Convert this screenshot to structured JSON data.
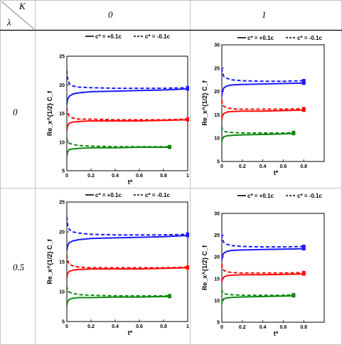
{
  "table": {
    "corner_top": "K",
    "corner_bottom": "λ",
    "col_headers": [
      "0",
      "1"
    ],
    "row_headers": [
      "0",
      "0.5"
    ]
  },
  "colors": {
    "blue": "#1a1aff",
    "red": "#ff0d0d",
    "green": "#0f8a0f"
  },
  "chart_data": [
    {
      "type": "line",
      "panel": "K=0, λ=0",
      "xlabel": "t*",
      "ylabel": "Re_x^{1/2} C_f",
      "xlim": [
        0,
        1
      ],
      "ylim": [
        5,
        25
      ],
      "xticks": [
        "0",
        "0.2",
        "0.4",
        "0.6",
        "0.8",
        "1"
      ],
      "yticks": [
        "5",
        "10",
        "15",
        "20",
        "25"
      ],
      "legend": {
        "placement": "top",
        "solid": "c* = +0.1c",
        "dashed": "c* = -0.1c"
      },
      "curves": [
        {
          "color": "blue",
          "style": "solid",
          "x": [
            0,
            0.005,
            0.02,
            0.05,
            0.1,
            0.2,
            0.4,
            0.6,
            0.8,
            1.0
          ],
          "y": [
            16.5,
            17.4,
            18.0,
            18.4,
            18.6,
            18.8,
            18.9,
            19.0,
            19.1,
            19.3
          ]
        },
        {
          "color": "blue",
          "style": "dashed",
          "x": [
            0,
            0.005,
            0.02,
            0.05,
            0.1,
            0.2,
            0.4,
            0.6,
            0.8,
            1.0
          ],
          "y": [
            22.5,
            21.2,
            20.2,
            19.8,
            19.6,
            19.5,
            19.4,
            19.4,
            19.4,
            19.5
          ]
        },
        {
          "color": "red",
          "style": "solid",
          "x": [
            0,
            0.005,
            0.02,
            0.05,
            0.1,
            0.2,
            0.4,
            0.6,
            0.8,
            1.0
          ],
          "y": [
            12.0,
            12.8,
            13.3,
            13.5,
            13.6,
            13.7,
            13.7,
            13.7,
            13.8,
            13.9
          ]
        },
        {
          "color": "red",
          "style": "dashed",
          "x": [
            0,
            0.005,
            0.02,
            0.05,
            0.1,
            0.2,
            0.4,
            0.6,
            0.8,
            1.0
          ],
          "y": [
            16.0,
            15.2,
            14.5,
            14.2,
            14.0,
            14.0,
            13.9,
            13.9,
            13.9,
            14.0
          ]
        },
        {
          "color": "green",
          "style": "solid",
          "x": [
            0,
            0.005,
            0.02,
            0.05,
            0.1,
            0.2,
            0.4,
            0.6,
            0.85
          ],
          "y": [
            7.5,
            8.2,
            8.7,
            8.8,
            8.9,
            9.0,
            9.0,
            9.1,
            9.1
          ]
        },
        {
          "color": "green",
          "style": "dashed",
          "x": [
            0,
            0.005,
            0.02,
            0.05,
            0.1,
            0.2,
            0.4,
            0.6,
            0.85
          ],
          "y": [
            10.8,
            10.2,
            9.8,
            9.6,
            9.4,
            9.3,
            9.2,
            9.2,
            9.2
          ]
        }
      ]
    },
    {
      "type": "line",
      "panel": "K=1, λ=0",
      "xlabel": "t*",
      "ylabel": "Re_x^{1/2} C_f",
      "xlim": [
        0,
        1
      ],
      "ylim": [
        5,
        30
      ],
      "xticks": [
        "0",
        "0.2",
        "0.4",
        "0.6",
        "0.8"
      ],
      "yticks": [
        "5",
        "10",
        "15",
        "20",
        "25",
        "30"
      ],
      "legend": {
        "placement": "top",
        "solid": "c* = +0.1c",
        "dashed": "c* = -0.1c"
      },
      "curves": [
        {
          "color": "blue",
          "style": "solid",
          "x": [
            0,
            0.005,
            0.02,
            0.05,
            0.1,
            0.2,
            0.4,
            0.6,
            0.8
          ],
          "y": [
            19.0,
            20.0,
            20.8,
            21.2,
            21.4,
            21.5,
            21.6,
            21.7,
            21.8
          ]
        },
        {
          "color": "blue",
          "style": "dashed",
          "x": [
            0,
            0.005,
            0.02,
            0.05,
            0.1,
            0.2,
            0.4,
            0.6,
            0.8
          ],
          "y": [
            25.0,
            24.0,
            23.2,
            22.8,
            22.5,
            22.3,
            22.2,
            22.2,
            22.3
          ]
        },
        {
          "color": "red",
          "style": "solid",
          "x": [
            0,
            0.005,
            0.02,
            0.05,
            0.1,
            0.2,
            0.4,
            0.6,
            0.8
          ],
          "y": [
            14.0,
            14.8,
            15.3,
            15.6,
            15.7,
            15.8,
            15.8,
            15.9,
            16.0
          ]
        },
        {
          "color": "red",
          "style": "dashed",
          "x": [
            0,
            0.005,
            0.02,
            0.05,
            0.1,
            0.2,
            0.4,
            0.6,
            0.8
          ],
          "y": [
            18.2,
            17.4,
            16.8,
            16.5,
            16.3,
            16.2,
            16.2,
            16.2,
            16.3
          ]
        },
        {
          "color": "green",
          "style": "solid",
          "x": [
            0,
            0.005,
            0.02,
            0.05,
            0.1,
            0.2,
            0.4,
            0.6,
            0.7
          ],
          "y": [
            9.2,
            9.9,
            10.3,
            10.5,
            10.6,
            10.7,
            10.8,
            10.9,
            11.0
          ]
        },
        {
          "color": "green",
          "style": "dashed",
          "x": [
            0,
            0.005,
            0.02,
            0.05,
            0.1,
            0.2,
            0.4,
            0.6,
            0.7
          ],
          "y": [
            12.5,
            11.9,
            11.5,
            11.3,
            11.2,
            11.1,
            11.1,
            11.1,
            11.2
          ]
        }
      ]
    },
    {
      "type": "line",
      "panel": "K=0, λ=0.5",
      "xlabel": "t*",
      "ylabel": "Re_x^{1/2} C_f",
      "xlim": [
        0,
        1
      ],
      "ylim": [
        5,
        25
      ],
      "xticks": [
        "0",
        "0.2",
        "0.4",
        "0.6",
        "0.8",
        "1"
      ],
      "yticks": [
        "5",
        "10",
        "15",
        "20",
        "25"
      ],
      "legend": {
        "placement": "top",
        "solid": "c* = +0.1c",
        "dashed": "c* = -0.1c"
      },
      "curves": [
        {
          "color": "blue",
          "style": "solid",
          "x": [
            0,
            0.005,
            0.02,
            0.05,
            0.1,
            0.2,
            0.4,
            0.6,
            0.8,
            1.0
          ],
          "y": [
            16.8,
            17.6,
            18.2,
            18.5,
            18.7,
            18.9,
            19.0,
            19.1,
            19.2,
            19.4
          ]
        },
        {
          "color": "blue",
          "style": "dashed",
          "x": [
            0,
            0.005,
            0.02,
            0.05,
            0.1,
            0.2,
            0.4,
            0.6,
            0.8,
            1.0
          ],
          "y": [
            22.5,
            21.3,
            20.4,
            20.0,
            19.8,
            19.6,
            19.5,
            19.5,
            19.5,
            19.6
          ]
        },
        {
          "color": "red",
          "style": "solid",
          "x": [
            0,
            0.005,
            0.02,
            0.05,
            0.1,
            0.2,
            0.4,
            0.6,
            0.8,
            1.0
          ],
          "y": [
            12.2,
            13.0,
            13.4,
            13.6,
            13.7,
            13.8,
            13.8,
            13.8,
            13.9,
            14.0
          ]
        },
        {
          "color": "red",
          "style": "dashed",
          "x": [
            0,
            0.005,
            0.02,
            0.05,
            0.1,
            0.2,
            0.4,
            0.6,
            0.8,
            1.0
          ],
          "y": [
            16.2,
            15.3,
            14.6,
            14.3,
            14.1,
            14.0,
            14.0,
            14.0,
            14.0,
            14.1
          ]
        },
        {
          "color": "green",
          "style": "solid",
          "x": [
            0,
            0.005,
            0.02,
            0.05,
            0.1,
            0.2,
            0.4,
            0.6,
            0.85
          ],
          "y": [
            7.6,
            8.3,
            8.7,
            8.9,
            9.0,
            9.0,
            9.1,
            9.1,
            9.2
          ]
        },
        {
          "color": "green",
          "style": "dashed",
          "x": [
            0,
            0.005,
            0.02,
            0.05,
            0.1,
            0.2,
            0.4,
            0.6,
            0.85
          ],
          "y": [
            10.9,
            10.3,
            9.9,
            9.7,
            9.5,
            9.4,
            9.3,
            9.3,
            9.3
          ]
        }
      ]
    },
    {
      "type": "line",
      "panel": "K=1, λ=0.5",
      "xlabel": "t*",
      "ylabel": "Re_x^{1/2} C_f",
      "xlim": [
        0,
        1
      ],
      "ylim": [
        5,
        30
      ],
      "xticks": [
        "0",
        "0.2",
        "0.4",
        "0.6",
        "0.8"
      ],
      "yticks": [
        "5",
        "10",
        "15",
        "20",
        "25",
        "30"
      ],
      "legend": {
        "placement": "top",
        "solid": "c* = +0.1c",
        "dashed": "c* = -0.1c"
      },
      "curves": [
        {
          "color": "blue",
          "style": "solid",
          "x": [
            0,
            0.005,
            0.02,
            0.05,
            0.1,
            0.2,
            0.4,
            0.6,
            0.8
          ],
          "y": [
            19.2,
            20.2,
            20.9,
            21.3,
            21.5,
            21.6,
            21.7,
            21.8,
            21.9
          ]
        },
        {
          "color": "blue",
          "style": "dashed",
          "x": [
            0,
            0.005,
            0.02,
            0.05,
            0.1,
            0.2,
            0.4,
            0.6,
            0.8
          ],
          "y": [
            25.2,
            24.1,
            23.3,
            22.9,
            22.6,
            22.4,
            22.3,
            22.3,
            22.4
          ]
        },
        {
          "color": "red",
          "style": "solid",
          "x": [
            0,
            0.005,
            0.02,
            0.05,
            0.1,
            0.2,
            0.4,
            0.6,
            0.8
          ],
          "y": [
            14.2,
            14.9,
            15.4,
            15.7,
            15.8,
            15.9,
            15.9,
            16.0,
            16.1
          ]
        },
        {
          "color": "red",
          "style": "dashed",
          "x": [
            0,
            0.005,
            0.02,
            0.05,
            0.1,
            0.2,
            0.4,
            0.6,
            0.8
          ],
          "y": [
            18.4,
            17.5,
            16.9,
            16.6,
            16.4,
            16.3,
            16.3,
            16.3,
            16.4
          ]
        },
        {
          "color": "green",
          "style": "solid",
          "x": [
            0,
            0.005,
            0.02,
            0.05,
            0.1,
            0.2,
            0.4,
            0.6,
            0.7
          ],
          "y": [
            9.3,
            10.0,
            10.4,
            10.6,
            10.7,
            10.8,
            10.9,
            11.0,
            11.1
          ]
        },
        {
          "color": "green",
          "style": "dashed",
          "x": [
            0,
            0.005,
            0.02,
            0.05,
            0.1,
            0.2,
            0.4,
            0.6,
            0.7
          ],
          "y": [
            12.6,
            12.0,
            11.6,
            11.4,
            11.3,
            11.2,
            11.2,
            11.2,
            11.3
          ]
        }
      ]
    }
  ]
}
